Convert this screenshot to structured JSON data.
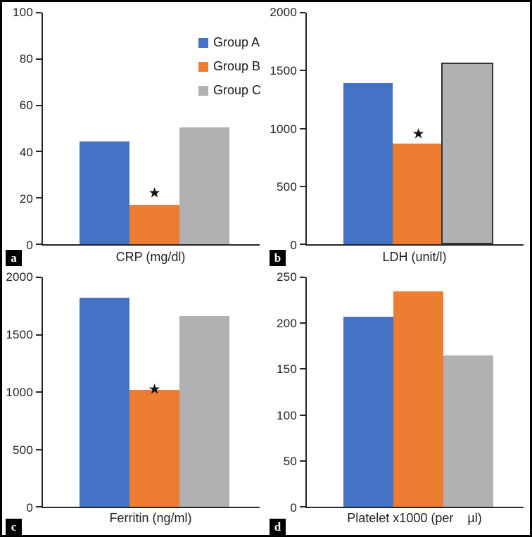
{
  "figure": {
    "description": "Four-panel grouped bar figure comparing Group A, B and C laboratory values",
    "background": "#ffffff",
    "border_color": "#000000",
    "axis_color": "#262626",
    "text_color": "#1f1f1f",
    "star_glyph": "★"
  },
  "legend": {
    "position": "top-right of panel a",
    "items": [
      {
        "label": "Group A",
        "color": "#4472C4"
      },
      {
        "label": "Group B",
        "color": "#ED7D31"
      },
      {
        "label": "Group C",
        "color": "#AFB1B3"
      }
    ]
  },
  "chart_data": [
    {
      "type": "bar",
      "panel_label": "a",
      "xlabel": "CRP (mg/dl)",
      "categories": [
        "Group A",
        "Group B",
        "Group C"
      ],
      "values": [
        44.5,
        17,
        50.5
      ],
      "ylim": [
        0,
        100
      ],
      "yticks": [
        0,
        20,
        40,
        60,
        80,
        100
      ],
      "grid": false,
      "annotation": {
        "star_on": "Group B",
        "star_y": 22
      }
    },
    {
      "type": "bar",
      "panel_label": "b",
      "xlabel": "LDH (unit/l)",
      "categories": [
        "Group A",
        "Group B",
        "Group C"
      ],
      "values": [
        1390,
        870,
        1570
      ],
      "ylim": [
        0,
        2000
      ],
      "yticks": [
        0,
        500,
        1000,
        1500,
        2000
      ],
      "grid": false,
      "outlined_bar": "Group C",
      "annotation": {
        "star_on": "Group B",
        "star_y": 950
      }
    },
    {
      "type": "bar",
      "panel_label": "c",
      "xlabel": "Ferritin (ng/ml)",
      "categories": [
        "Group A",
        "Group B",
        "Group C"
      ],
      "values": [
        1820,
        1020,
        1660
      ],
      "ylim": [
        0,
        2000
      ],
      "yticks": [
        0,
        500,
        1000,
        1500,
        2000
      ],
      "grid": false,
      "annotation": {
        "star_on": "Group B",
        "star_y": 1020
      }
    },
    {
      "type": "bar",
      "panel_label": "d",
      "xlabel": "Platelet x1000 (per    µl)",
      "categories": [
        "Group A",
        "Group B",
        "Group C"
      ],
      "values": [
        207,
        235,
        165
      ],
      "ylim": [
        0,
        250
      ],
      "yticks": [
        0,
        50,
        100,
        150,
        200,
        250
      ],
      "grid": false,
      "annotation": null
    }
  ]
}
